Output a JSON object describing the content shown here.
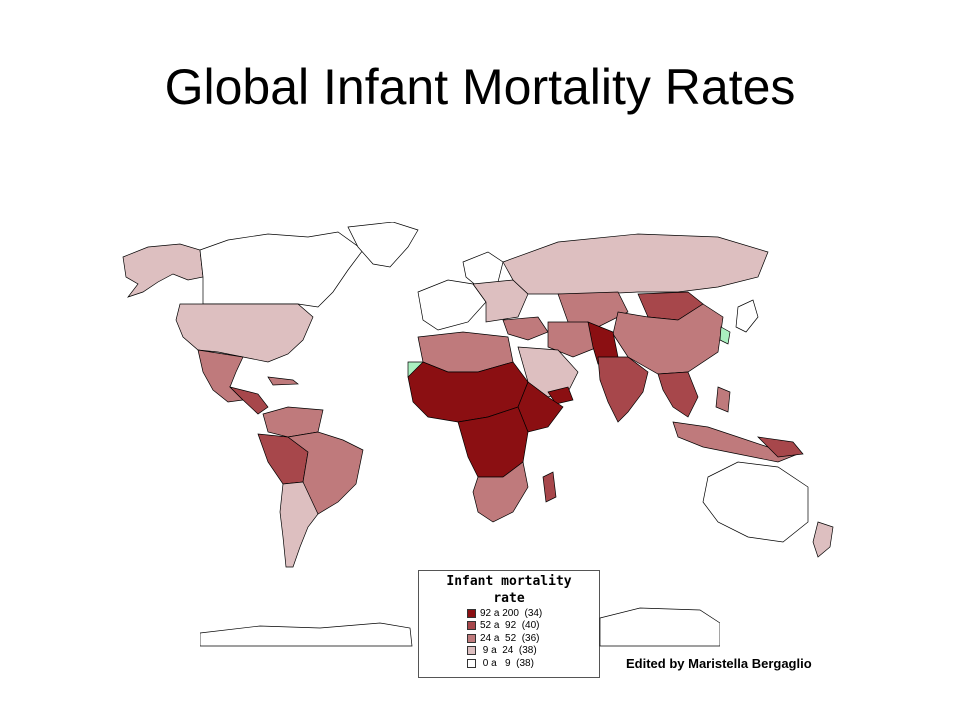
{
  "title": "Global Infant Mortality Rates",
  "legend": {
    "title_line1": "Infant mortality",
    "title_line2": "rate",
    "classes": [
      {
        "label": "92 a 200  (34)",
        "color": "#8b0f12"
      },
      {
        "label": "52 a  92  (40)",
        "color": "#a7474b"
      },
      {
        "label": "24 a  52  (36)",
        "color": "#bf7a7c"
      },
      {
        "label": " 9 a  24  (38)",
        "color": "#ddbfc0"
      },
      {
        "label": " 0 a   9  (38)",
        "color": "#ffffff"
      }
    ]
  },
  "credit": "Edited by Maristella Bergaglio",
  "colors": {
    "no_data": "#aaf0c0",
    "outline": "#000000"
  }
}
